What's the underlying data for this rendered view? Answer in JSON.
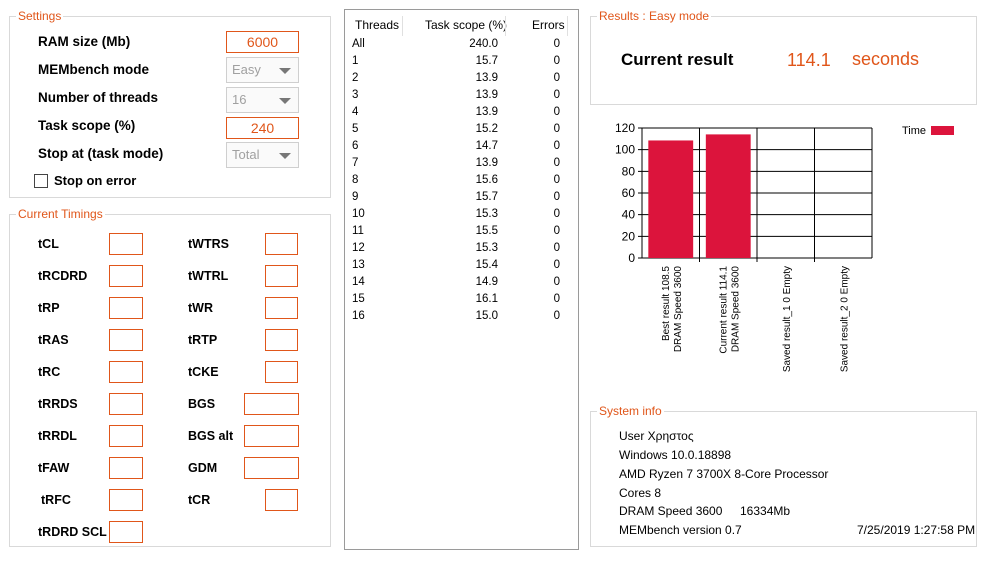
{
  "settings": {
    "title": "Settings",
    "ram_label": "RAM size (Mb)",
    "ram_value": "6000",
    "mode_label": "MEMbench mode",
    "mode_value": "Easy",
    "threads_label": "Number of threads",
    "threads_value": "16",
    "task_label": "Task scope (%)",
    "task_value": "240",
    "stop_label": "Stop at (task mode)",
    "stop_value": "Total",
    "stop_on_error_label": "Stop on error",
    "stop_on_error_checked": false
  },
  "timings": {
    "title": "Current Timings",
    "left": [
      "tCL",
      "tRCDRD",
      "tRP",
      "tRAS",
      "tRC",
      "tRRDS",
      "tRRDL",
      "tFAW",
      "tRFC",
      "tRDRD SCL"
    ],
    "right": [
      "tWTRS",
      "tWTRL",
      "tWR",
      "tRTP",
      "tCKE",
      "BGS",
      "BGS alt",
      "GDM",
      "tCR"
    ]
  },
  "threads_table": {
    "columns": [
      "Threads",
      "Task scope (%)",
      "Errors"
    ],
    "rows": [
      [
        "All",
        "240.0",
        "0"
      ],
      [
        "1",
        "15.7",
        "0"
      ],
      [
        "2",
        "13.9",
        "0"
      ],
      [
        "3",
        "13.9",
        "0"
      ],
      [
        "4",
        "13.9",
        "0"
      ],
      [
        "5",
        "15.2",
        "0"
      ],
      [
        "6",
        "14.7",
        "0"
      ],
      [
        "7",
        "13.9",
        "0"
      ],
      [
        "8",
        "15.6",
        "0"
      ],
      [
        "9",
        "15.7",
        "0"
      ],
      [
        "10",
        "15.3",
        "0"
      ],
      [
        "11",
        "15.5",
        "0"
      ],
      [
        "12",
        "15.3",
        "0"
      ],
      [
        "13",
        "15.4",
        "0"
      ],
      [
        "14",
        "14.9",
        "0"
      ],
      [
        "15",
        "16.1",
        "0"
      ],
      [
        "16",
        "15.0",
        "0"
      ]
    ]
  },
  "results": {
    "title": "Results : Easy mode",
    "label": "Current result",
    "value": "114.1",
    "unit": "seconds"
  },
  "chart_data": {
    "type": "bar",
    "categories": [
      [
        "Best result 108.5",
        "DRAM Speed 3600"
      ],
      [
        "Current result 114.1",
        "DRAM Speed 3600"
      ],
      [
        "Saved result_1 0 Empty"
      ],
      [
        "Saved result_2 0 Empty"
      ]
    ],
    "series": [
      {
        "name": "Time",
        "values": [
          108.5,
          114.1,
          0,
          0
        ],
        "color": "#dc143c"
      }
    ],
    "yticks": [
      0,
      20,
      40,
      60,
      80,
      100,
      120
    ],
    "ylim": [
      0,
      120
    ],
    "grid": true,
    "legend_position": "top-right"
  },
  "system": {
    "title": "System info",
    "user": "User Χρηστος",
    "os": "Windows 10.0.18898",
    "cpu": "AMD Ryzen 7 3700X 8-Core Processor",
    "cores": "Cores 8",
    "dram": "DRAM Speed 3600",
    "memsize": "16334Mb",
    "version": "MEMbench version 0.7",
    "datetime": "7/25/2019 1:27:58 PM"
  },
  "colors": {
    "accent": "#e0561a",
    "bar": "#dc143c"
  }
}
